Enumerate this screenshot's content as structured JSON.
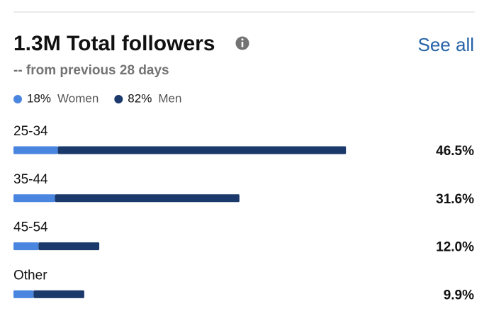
{
  "header": {
    "title": "1.3M Total followers",
    "subtitle": "-- from previous 28 days",
    "link": "See all"
  },
  "chart_data": {
    "type": "stacked-barh",
    "categories": [
      "25-34",
      "35-44",
      "45-54",
      "Other"
    ],
    "series": [
      {
        "name": "Women",
        "share": 18,
        "share_label": "18%",
        "color": "#4a86e0",
        "values": [
          6.2,
          5.8,
          3.5,
          2.8
        ]
      },
      {
        "name": "Men",
        "share": 82,
        "share_label": "82%",
        "color": "#1b3a6b",
        "values": [
          40.3,
          25.8,
          8.5,
          7.1
        ]
      }
    ],
    "values": [
      46.5,
      31.6,
      12.0,
      9.9
    ],
    "value_labels": [
      "46.5%",
      "31.6%",
      "12.0%",
      "9.9%"
    ],
    "xlim": [
      0,
      50
    ]
  }
}
